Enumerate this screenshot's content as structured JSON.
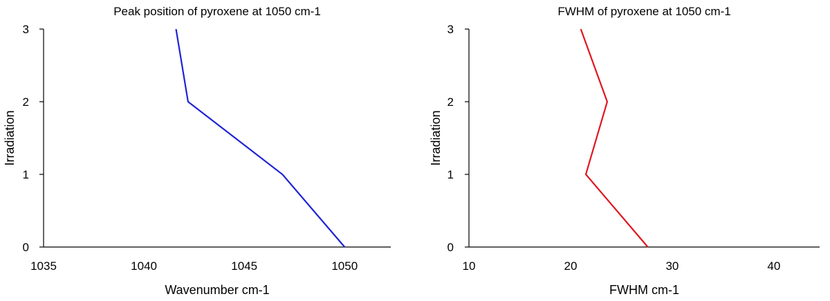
{
  "chart_data": [
    {
      "type": "line",
      "title": "Peak position of pyroxene at 1050 cm-1",
      "xlabel": "Wavenumber cm-1",
      "ylabel": "Irradiation",
      "xlim": [
        1035,
        1052.3
      ],
      "xticks": [
        1035,
        1040,
        1045,
        1050
      ],
      "xtick_labels": [
        "1035",
        "1040",
        "1045",
        "1050"
      ],
      "ylim": [
        0,
        3
      ],
      "yticks": [
        0,
        1,
        2,
        3
      ],
      "ytick_labels": [
        "0",
        "1",
        "2",
        "3"
      ],
      "grid": false,
      "series": [
        {
          "color": "#1f23d6",
          "points": [
            {
              "x": 1050.0,
              "y": 0
            },
            {
              "x": 1046.9,
              "y": 1
            },
            {
              "x": 1042.2,
              "y": 2
            },
            {
              "x": 1041.6,
              "y": 3
            }
          ]
        }
      ]
    },
    {
      "type": "line",
      "title": "FWHM of pyroxene at 1050 cm-1",
      "xlabel": "FWHM cm-1",
      "ylabel": "Irradiation",
      "xlim": [
        10,
        44.5
      ],
      "xticks": [
        10,
        20,
        30,
        40
      ],
      "xtick_labels": [
        "10",
        "20",
        "30",
        "40"
      ],
      "ylim": [
        0,
        3
      ],
      "yticks": [
        0,
        1,
        2,
        3
      ],
      "ytick_labels": [
        "0",
        "1",
        "2",
        "3"
      ],
      "grid": false,
      "series": [
        {
          "color": "#e0161e",
          "points": [
            {
              "x": 27.6,
              "y": 0
            },
            {
              "x": 21.5,
              "y": 1
            },
            {
              "x": 23.6,
              "y": 2
            },
            {
              "x": 21.0,
              "y": 3
            }
          ]
        }
      ]
    }
  ]
}
